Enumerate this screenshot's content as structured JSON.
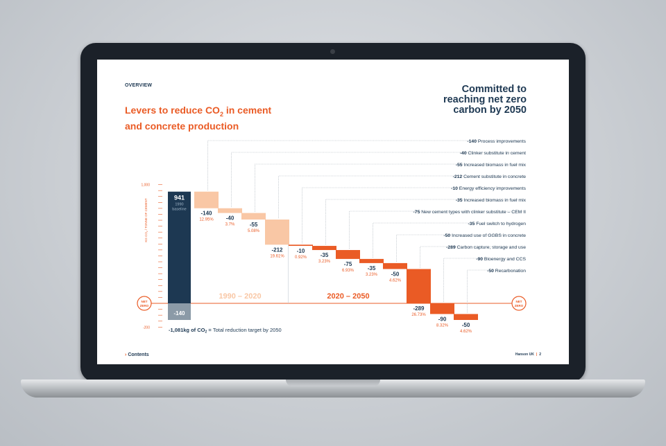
{
  "section_label": "OVERVIEW",
  "title_parts": [
    "Levers to reduce CO",
    "2",
    " in cement",
    "and concrete production"
  ],
  "headline_lines": [
    "Committed to",
    "reaching net zero",
    "carbon by 2050"
  ],
  "footer": {
    "contents": "Contents",
    "arrow": "›",
    "brand": "Hanson UK",
    "sep": "|",
    "page": "2"
  },
  "colors": {
    "navy": "#1d3852",
    "orange": "#ea5b25",
    "peach": "#f9c7a5",
    "grey": "#8b9aa7"
  },
  "chart_data": {
    "type": "bar",
    "subtype": "waterfall",
    "yaxis": {
      "ticks": [
        "1,000",
        "-200"
      ],
      "ylim": [
        -200,
        1000
      ],
      "label_parts": [
        "KG CO",
        "2",
        " / TONNE OF CEMENT"
      ]
    },
    "baseline": {
      "value": 941,
      "value_label": "941",
      "label_lines": [
        "1990",
        "baseline"
      ],
      "offset_value": -140,
      "offset_label": "-140"
    },
    "net_zero_label": [
      "NET",
      "ZERO"
    ],
    "periods": [
      {
        "label": "1990 – 2020"
      },
      {
        "label": "2020 – 2050"
      }
    ],
    "steps": [
      {
        "value": -140,
        "value_label": "-140",
        "pct": "12.95%",
        "desc": "Process improvements",
        "period": 0
      },
      {
        "value": -40,
        "value_label": "-40",
        "pct": "3.7%",
        "desc": "Clinker substitute in cement",
        "period": 0
      },
      {
        "value": -55,
        "value_label": "-55",
        "pct": "5.08%",
        "desc": "Increased biomass in fuel mix",
        "period": 0
      },
      {
        "value": -212,
        "value_label": "-212",
        "pct": "19.61%",
        "desc": "Cement substitute in concrete",
        "period": 0
      },
      {
        "value": -10,
        "value_label": "-10",
        "pct": "0.92%",
        "desc": "Energy efficiency improvements",
        "period": 1
      },
      {
        "value": -35,
        "value_label": "-35",
        "pct": "3.23%",
        "desc": "Increased biomass in fuel mix",
        "period": 1
      },
      {
        "value": -75,
        "value_label": "-75",
        "pct": "6.93%",
        "desc": "New cement types with clinker substitute – CEM II",
        "period": 1
      },
      {
        "value": -35,
        "value_label": "-35",
        "pct": "3.23%",
        "desc": "Fuel switch to hydrogen",
        "period": 1
      },
      {
        "value": -50,
        "value_label": "-50",
        "pct": "4.62%",
        "desc": "Increased use of GGBS in concrete",
        "period": 1
      },
      {
        "value": -289,
        "value_label": "-289",
        "pct": "26.73%",
        "desc": "Carbon capture, storage and use",
        "period": 1
      },
      {
        "value": -90,
        "value_label": "-90",
        "pct": "8.32%",
        "desc": "Bioenergy and CCS",
        "period": 1
      },
      {
        "value": -50,
        "value_label": "-50",
        "pct": "4.62%",
        "desc": "Recarbonation",
        "period": 1
      }
    ],
    "total": {
      "parts": [
        "-1,081kg of CO",
        "2",
        " = ",
        "Total reduction target by 2050"
      ]
    }
  }
}
